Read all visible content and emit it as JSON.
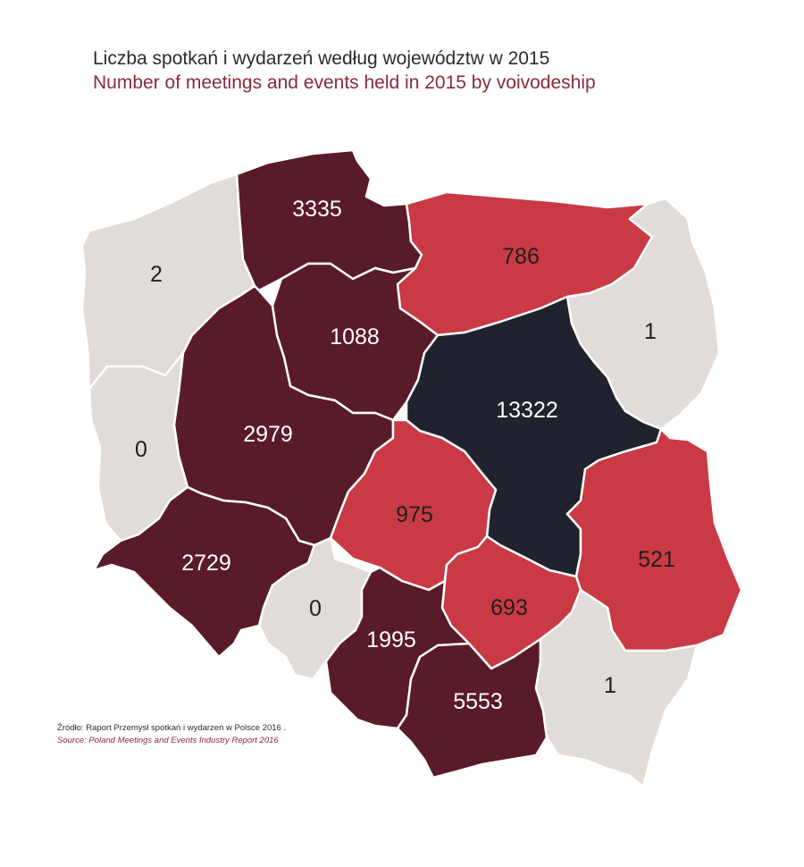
{
  "title": {
    "pl": "Liczba spotkań i wydarzeń według województw w 2015",
    "en": "Number of meetings and events held in 2015 by voivodeship"
  },
  "source": {
    "pl": "Źródło: Raport Przemysł spotkań i wydarzeń w Polsce 2016 .",
    "en": "Source: Poland Meetings and Events Industry Report 2016"
  },
  "colors": {
    "light": "#e2dcd9",
    "red": "#c93a45",
    "maroon": "#5a1b28",
    "navy": "#20222d"
  },
  "regions": [
    {
      "id": "zachodniopomorskie",
      "value": "2",
      "color": "light"
    },
    {
      "id": "pomorskie",
      "value": "3335",
      "color": "maroon"
    },
    {
      "id": "warminsko-mazurskie",
      "value": "786",
      "color": "red"
    },
    {
      "id": "podlaskie",
      "value": "1",
      "color": "light"
    },
    {
      "id": "kujawsko-pomorskie",
      "value": "1088",
      "color": "maroon"
    },
    {
      "id": "lubuskie",
      "value": "0",
      "color": "light"
    },
    {
      "id": "wielkopolskie",
      "value": "2979",
      "color": "maroon"
    },
    {
      "id": "mazowieckie",
      "value": "13322",
      "color": "navy"
    },
    {
      "id": "lodzkie",
      "value": "975",
      "color": "red"
    },
    {
      "id": "lubelskie",
      "value": "521",
      "color": "red"
    },
    {
      "id": "dolnoslaskie",
      "value": "2729",
      "color": "maroon"
    },
    {
      "id": "opolskie",
      "value": "0",
      "color": "light"
    },
    {
      "id": "swietokrzyskie",
      "value": "693",
      "color": "red"
    },
    {
      "id": "slaskie",
      "value": "1995",
      "color": "maroon"
    },
    {
      "id": "malopolskie",
      "value": "5553",
      "color": "maroon"
    },
    {
      "id": "podkarpackie",
      "value": "1",
      "color": "light"
    }
  ]
}
